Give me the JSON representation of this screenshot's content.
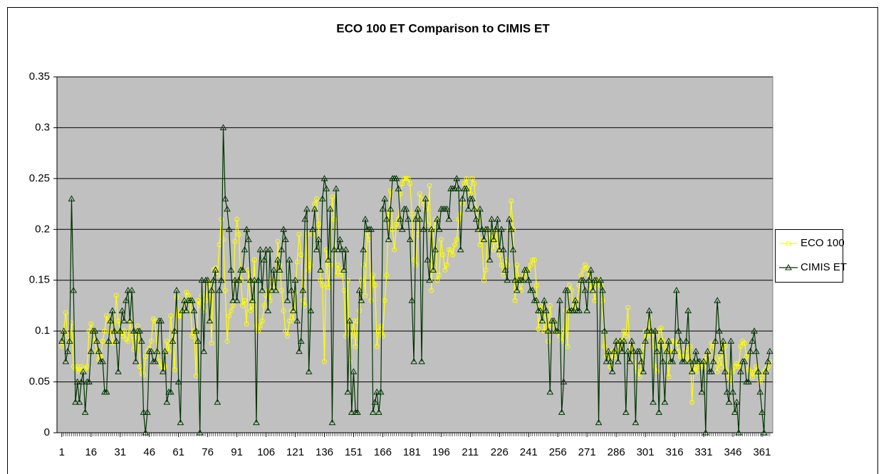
{
  "chart_data": {
    "type": "line",
    "title": "ECO 100 ET Comparison to CIMIS ET",
    "x": [
      1,
      2,
      3,
      4,
      5,
      6,
      7,
      8,
      9,
      10,
      11,
      12,
      13,
      14,
      15,
      16,
      17,
      18,
      19,
      20,
      21,
      22,
      23,
      24,
      25,
      26,
      27,
      28,
      29,
      30,
      31,
      32,
      33,
      34,
      35,
      36,
      37,
      38,
      39,
      40,
      41,
      42,
      43,
      44,
      45,
      46,
      47,
      48,
      49,
      50,
      51,
      52,
      53,
      54,
      55,
      56,
      57,
      58,
      59,
      60,
      61,
      62,
      63,
      64,
      65,
      66,
      67,
      68,
      69,
      70,
      71,
      72,
      73,
      74,
      75,
      76,
      77,
      78,
      79,
      80,
      81,
      82,
      83,
      84,
      85,
      86,
      87,
      88,
      89,
      90,
      91,
      92,
      93,
      94,
      95,
      96,
      97,
      98,
      99,
      100,
      101,
      102,
      103,
      104,
      105,
      106,
      107,
      108,
      109,
      110,
      111,
      112,
      113,
      114,
      115,
      116,
      117,
      118,
      119,
      120,
      121,
      122,
      123,
      124,
      125,
      126,
      127,
      128,
      129,
      130,
      131,
      132,
      133,
      134,
      135,
      136,
      137,
      138,
      139,
      140,
      141,
      142,
      143,
      144,
      145,
      146,
      147,
      148,
      149,
      150,
      151,
      152,
      153,
      154,
      155,
      156,
      157,
      158,
      159,
      160,
      161,
      162,
      163,
      164,
      165,
      166,
      167,
      168,
      169,
      170,
      171,
      172,
      173,
      174,
      175,
      176,
      177,
      178,
      179,
      180,
      181,
      182,
      183,
      184,
      185,
      186,
      187,
      188,
      189,
      190,
      191,
      192,
      193,
      194,
      195,
      196,
      197,
      198,
      199,
      200,
      201,
      202,
      203,
      204,
      205,
      206,
      207,
      208,
      209,
      210,
      211,
      212,
      213,
      214,
      215,
      216,
      217,
      218,
      219,
      220,
      221,
      222,
      223,
      224,
      225,
      226,
      227,
      228,
      229,
      230,
      231,
      232,
      233,
      234,
      235,
      236,
      237,
      238,
      239,
      240,
      241,
      242,
      243,
      244,
      245,
      246,
      247,
      248,
      249,
      250,
      251,
      252,
      253,
      254,
      255,
      256,
      257,
      258,
      259,
      260,
      261,
      262,
      263,
      264,
      265,
      266,
      267,
      268,
      269,
      270,
      271,
      272,
      273,
      274,
      275,
      276,
      277,
      278,
      279,
      280,
      281,
      282,
      283,
      284,
      285,
      286,
      287,
      288,
      289,
      290,
      291,
      292,
      293,
      294,
      295,
      296,
      297,
      298,
      299,
      300,
      301,
      302,
      303,
      304,
      305,
      306,
      307,
      308,
      309,
      310,
      311,
      312,
      313,
      314,
      315,
      316,
      317,
      318,
      319,
      320,
      321,
      322,
      323,
      324,
      325,
      326,
      327,
      328,
      329,
      330,
      331,
      332,
      333,
      334,
      335,
      336,
      337,
      338,
      339,
      340,
      341,
      342,
      343,
      344,
      345,
      346,
      347,
      348,
      349,
      350,
      351,
      352,
      353,
      354,
      355,
      356,
      357,
      358,
      359,
      360,
      361,
      362,
      363,
      364,
      365
    ],
    "xlim": [
      -1.5,
      366.5
    ],
    "xticks": [
      1,
      16,
      31,
      46,
      61,
      76,
      91,
      106,
      121,
      136,
      151,
      166,
      181,
      196,
      211,
      226,
      241,
      256,
      271,
      286,
      301,
      316,
      331,
      346,
      361
    ],
    "ylim": [
      0,
      0.35
    ],
    "yticks": [
      0,
      0.05,
      0.1,
      0.15,
      0.2,
      0.25,
      0.3,
      0.35
    ],
    "grid": true,
    "legend": "right",
    "series": [
      {
        "name": "ECO 100",
        "color": "#ffff00",
        "marker": "circle",
        "values": [
          0.085,
          0.1,
          0.118,
          0.095,
          0.09,
          0.108,
          0.065,
          0.063,
          0.065,
          0.06,
          0.065,
          0.06,
          0.063,
          0.065,
          0.1,
          0.107,
          0.1,
          0.09,
          0.08,
          0.072,
          0.075,
          0.09,
          0.1,
          0.115,
          0.11,
          0.1,
          0.088,
          0.1,
          0.135,
          0.11,
          0.1,
          0.095,
          0.1,
          0.092,
          0.09,
          0.11,
          0.095,
          0.082,
          0.095,
          0.105,
          0.065,
          0.058,
          0.057,
          0.075,
          0.08,
          0.083,
          0.09,
          0.112,
          0.11,
          0.08,
          0.07,
          0.065,
          0.065,
          0.065,
          0.09,
          0.08,
          0.115,
          0.09,
          0.062,
          0.133,
          0.115,
          0.115,
          0.12,
          0.128,
          0.138,
          0.135,
          0.13,
          0.095,
          0.1,
          0.056,
          0.13,
          0.125,
          0.135,
          0.12,
          0.13,
          0.145,
          0.148,
          0.088,
          0.16,
          0.162,
          0.155,
          0.185,
          0.21,
          0.19,
          0.14,
          0.09,
          0.115,
          0.12,
          0.125,
          0.188,
          0.21,
          0.195,
          0.15,
          0.125,
          0.13,
          0.107,
          0.16,
          0.12,
          0.125,
          0.17,
          0.105,
          0.1,
          0.105,
          0.11,
          0.125,
          0.135,
          0.14,
          0.13,
          0.15,
          0.145,
          0.14,
          0.188,
          0.165,
          0.14,
          0.12,
          0.1,
          0.095,
          0.11,
          0.12,
          0.11,
          0.138,
          0.168,
          0.195,
          0.175,
          0.13,
          0.125,
          0.195,
          0.16,
          0.165,
          0.195,
          0.225,
          0.23,
          0.205,
          0.15,
          0.145,
          0.07,
          0.18,
          0.143,
          0.165,
          0.232,
          0.21,
          0.155,
          0.165,
          0.155,
          0.16,
          0.14,
          0.095,
          0.15,
          0.07,
          0.095,
          0.11,
          0.085,
          0.11,
          0.12,
          0.15,
          0.165,
          0.135,
          0.197,
          0.19,
          0.13,
          0.155,
          0.145,
          0.085,
          0.1,
          0.105,
          0.095,
          0.13,
          0.155,
          0.215,
          0.238,
          0.2,
          0.18,
          0.205,
          0.21,
          0.235,
          0.245,
          0.25,
          0.25,
          0.25,
          0.245,
          0.215,
          0.17,
          0.165,
          0.195,
          0.235,
          0.23,
          0.225,
          0.22,
          0.205,
          0.243,
          0.14,
          0.2,
          0.21,
          0.15,
          0.155,
          0.19,
          0.175,
          0.16,
          0.165,
          0.18,
          0.18,
          0.175,
          0.185,
          0.19,
          0.21,
          0.215,
          0.225,
          0.245,
          0.25,
          0.24,
          0.235,
          0.25,
          0.245,
          0.22,
          0.21,
          0.185,
          0.19,
          0.15,
          0.16,
          0.2,
          0.19,
          0.195,
          0.18,
          0.2,
          0.185,
          0.175,
          0.165,
          0.155,
          0.17,
          0.165,
          0.2,
          0.228,
          0.2,
          0.13,
          0.165,
          0.15,
          0.14,
          0.15,
          0.155,
          0.16,
          0.16,
          0.165,
          0.17,
          0.17,
          0.145,
          0.102,
          0.125,
          0.12,
          0.1,
          0.115,
          0.09,
          0.125,
          0.105,
          0.11,
          0.1,
          0.1,
          0.095,
          0.09,
          0.1,
          0.12,
          0.085,
          0.145,
          0.14,
          0.12,
          0.125,
          0.13,
          0.145,
          0.155,
          0.16,
          0.165,
          0.162,
          0.155,
          0.14,
          0.145,
          0.13,
          0.15,
          0.15,
          0.145,
          0.13,
          0.085,
          0.075,
          0.08,
          0.065,
          0.08,
          0.075,
          0.08,
          0.09,
          0.085,
          0.09,
          0.1,
          0.095,
          0.123,
          0.08,
          0.085,
          0.07,
          0.065,
          0.06,
          0.055,
          0.07,
          0.085,
          0.1,
          0.095,
          0.112,
          0.095,
          0.085,
          0.065,
          0.06,
          0.1,
          0.103,
          0.09,
          0.085,
          0.08,
          0.055,
          0.08,
          0.09,
          0.09,
          0.088,
          0.08,
          0.075,
          0.075,
          0.075,
          0.082,
          0.07,
          0.085,
          0.03,
          0.065,
          0.06,
          0.065,
          0.068,
          0.065,
          0.065,
          0.075,
          0.07,
          0.078,
          0.088,
          0.085,
          0.07,
          0.06,
          0.075,
          0.065,
          0.088,
          0.085,
          0.06,
          0.055,
          0.05,
          0.06,
          0.065,
          0.068,
          0.065,
          0.085,
          0.09,
          0.088,
          0.075,
          0.062,
          0.06,
          0.055,
          0.06,
          0.065,
          0.058,
          0.05,
          0.055,
          0.06,
          0.062,
          0.065,
          0.07
        ]
      },
      {
        "name": "CIMIS ET",
        "color": "#003300",
        "marker": "triangle",
        "values": [
          0.09,
          0.1,
          0.07,
          0.08,
          0.09,
          0.23,
          0.14,
          0.03,
          0.05,
          0.03,
          0.05,
          0.06,
          0.02,
          0.05,
          0.05,
          0.08,
          0.1,
          0.1,
          0.09,
          0.08,
          0.07,
          0.07,
          0.04,
          0.04,
          0.09,
          0.11,
          0.12,
          0.1,
          0.09,
          0.06,
          0.1,
          0.12,
          0.11,
          0.13,
          0.14,
          0.11,
          0.14,
          0.1,
          0.07,
          0.1,
          0.1,
          0.09,
          0.02,
          0,
          0.02,
          0.08,
          0.08,
          0.07,
          0.07,
          0.08,
          0.11,
          0.11,
          0.06,
          0.08,
          0.03,
          0.04,
          0.04,
          0.09,
          0.1,
          0.14,
          0.05,
          0.01,
          0.12,
          0.13,
          0.12,
          0.13,
          0.13,
          0.13,
          0.12,
          0.1,
          0.09,
          0,
          0.15,
          0.08,
          0.15,
          0.15,
          0.11,
          0.14,
          0.15,
          0.16,
          0.03,
          0.14,
          0.15,
          0.3,
          0.23,
          0.22,
          0.2,
          0.16,
          0.13,
          0.15,
          0.13,
          0.15,
          0.16,
          0.16,
          0.18,
          0.2,
          0.19,
          0.15,
          0.13,
          0.15,
          0.01,
          0.15,
          0.18,
          0.14,
          0.17,
          0.18,
          0.12,
          0.18,
          0.14,
          0.16,
          0.14,
          0.17,
          0.16,
          0.18,
          0.2,
          0.19,
          0.13,
          0.17,
          0.14,
          0.12,
          0.15,
          0.11,
          0.08,
          0.09,
          0.14,
          0.21,
          0.22,
          0.06,
          0.12,
          0.2,
          0.22,
          0.18,
          0.19,
          0.16,
          0.23,
          0.25,
          0.24,
          0.17,
          0.22,
          0.01,
          0.18,
          0.24,
          0.18,
          0.19,
          0.18,
          0.16,
          0.18,
          0.04,
          0.11,
          0.02,
          0.06,
          0.02,
          0.02,
          0.14,
          0.13,
          0.18,
          0.21,
          0.2,
          0.2,
          0.2,
          0.02,
          0.03,
          0.04,
          0.02,
          0.04,
          0.22,
          0.23,
          0.21,
          0.19,
          0.22,
          0.25,
          0.25,
          0.25,
          0.24,
          0.21,
          0.2,
          0.22,
          0.22,
          0.21,
          0.19,
          0.13,
          0.07,
          0.21,
          0.22,
          0.21,
          0.07,
          0.2,
          0.23,
          0.17,
          0.15,
          0.2,
          0.16,
          0.18,
          0.21,
          0.2,
          0.22,
          0.22,
          0.22,
          0.22,
          0.21,
          0.24,
          0.24,
          0.24,
          0.25,
          0.24,
          0.18,
          0.23,
          0.24,
          0.24,
          0.22,
          0.23,
          0.23,
          0.22,
          0.21,
          0.2,
          0.22,
          0.2,
          0.19,
          0.2,
          0.2,
          0.17,
          0.21,
          0.19,
          0.2,
          0.21,
          0.18,
          0.2,
          0.18,
          0.16,
          0.15,
          0.21,
          0.2,
          0.18,
          0.15,
          0.14,
          0.15,
          0.15,
          0.15,
          0.16,
          0.16,
          0.15,
          0.14,
          0.14,
          0.13,
          0.13,
          0.12,
          0.12,
          0.11,
          0.13,
          0.12,
          0.1,
          0.04,
          0.11,
          0.11,
          0.1,
          0.1,
          0.13,
          0.02,
          0.05,
          0.14,
          0.14,
          0.12,
          0.12,
          0.12,
          0.13,
          0.12,
          0.12,
          0.15,
          0.15,
          0.14,
          0.12,
          0.15,
          0.16,
          0.14,
          0.15,
          0.15,
          0.01,
          0.15,
          0.14,
          0.1,
          0.07,
          0.08,
          0.07,
          0.06,
          0.08,
          0.09,
          0.07,
          0.09,
          0.08,
          0.09,
          0.02,
          0.08,
          0.07,
          0.09,
          0.08,
          0.01,
          0.08,
          0.08,
          0.07,
          0.06,
          0.09,
          0.1,
          0.12,
          0.1,
          0.03,
          0.1,
          0.08,
          0.02,
          0.09,
          0.07,
          0.03,
          0.08,
          0.09,
          0.07,
          0.07,
          0.08,
          0.14,
          0.1,
          0.09,
          0.07,
          0.07,
          0.09,
          0.12,
          0.07,
          0.06,
          0.07,
          0.08,
          0.07,
          0.07,
          0.04,
          0.07,
          0,
          0.08,
          0.06,
          0.06,
          0.07,
          0.09,
          0.13,
          0.1,
          0.08,
          0.09,
          0.06,
          0.04,
          0.03,
          0.09,
          0.04,
          0.02,
          0.03,
          0,
          0.06,
          0.07,
          0.07,
          0.05,
          0.05,
          0.08,
          0.09,
          0.1,
          0.08,
          0.06,
          0.04,
          0.02,
          0,
          0.06,
          0.07,
          0.08
        ]
      }
    ]
  }
}
